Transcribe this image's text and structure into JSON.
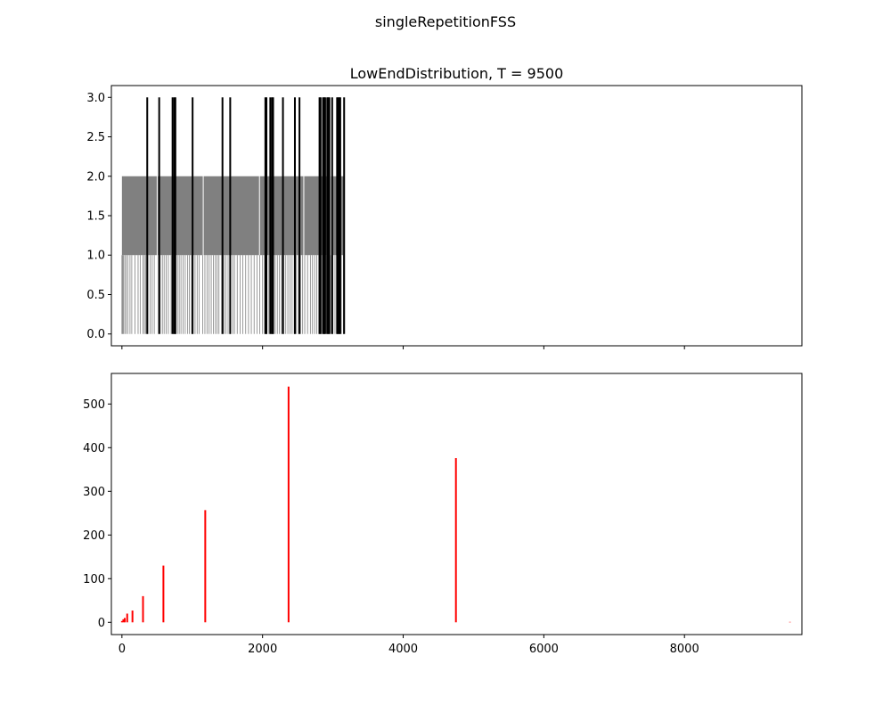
{
  "figure": {
    "suptitle": "singleRepetitionFSS"
  },
  "chart_data": [
    {
      "type": "bar",
      "title": "LowEndDistribution, T = 9500",
      "xlabel": "",
      "ylabel": "",
      "xlim": [
        -150,
        9670
      ],
      "ylim": [
        -0.15,
        3.15
      ],
      "x_ticks": [
        0,
        2000,
        4000,
        6000,
        8000
      ],
      "x_tick_labels_visible": false,
      "y_ticks": [
        0.0,
        0.5,
        1.0,
        1.5,
        2.0,
        2.5,
        3.0
      ],
      "y_tick_labels": [
        "0.0",
        "0.5",
        "1.0",
        "1.5",
        "2.0",
        "2.5",
        "3.0"
      ],
      "grid": false,
      "colors": {
        "level1": "#808080",
        "level2": "#808080",
        "level3": "#000000"
      },
      "level1_x": [
        0,
        10,
        22,
        40,
        60,
        85,
        115,
        140,
        185,
        230,
        260,
        300,
        320,
        340,
        370,
        400,
        430,
        460,
        520,
        545,
        575,
        600,
        630,
        660,
        700,
        730,
        760,
        790,
        815,
        840,
        870,
        900,
        935,
        960,
        990,
        1010,
        1040,
        1070,
        1100,
        1150,
        1180,
        1210,
        1240,
        1270,
        1300,
        1330,
        1355,
        1380,
        1420,
        1450,
        1480,
        1510,
        1540,
        1575,
        1600,
        1640,
        1680,
        1720,
        1760,
        1800,
        1840,
        1880,
        1920,
        1960,
        2000,
        2030,
        2060,
        2090,
        2120,
        2150,
        2180,
        2210,
        2240,
        2270,
        2300,
        2330,
        2360,
        2390,
        2420,
        2450,
        2480,
        2510,
        2540,
        2570,
        2600,
        2640,
        2680,
        2710,
        2740,
        2770,
        2800,
        2830,
        2850,
        2880,
        2910,
        2940,
        2970,
        3000,
        3030,
        3060,
        3090,
        3120,
        3150
      ],
      "level2_start": 0,
      "level2_end": 3170,
      "level2_gaps": [
        495,
        1150,
        1950,
        2450,
        2580,
        2960
      ],
      "level3_x": [
        360,
        530,
        720,
        745,
        760,
        1005,
        1430,
        1540,
        2040,
        2055,
        2110,
        2135,
        2150,
        2290,
        2460,
        2525,
        2810,
        2825,
        2860,
        2875,
        2890,
        2920,
        2935,
        2950,
        2990,
        3060,
        3075,
        3090,
        3105,
        3160
      ]
    },
    {
      "type": "bar",
      "title": "",
      "xlabel": "",
      "ylabel": "",
      "xlim": [
        -150,
        9670
      ],
      "ylim": [
        -28,
        570
      ],
      "x_ticks": [
        0,
        2000,
        4000,
        6000,
        8000
      ],
      "x_tick_labels": [
        "0",
        "2000",
        "4000",
        "6000",
        "8000"
      ],
      "y_ticks": [
        0,
        100,
        200,
        300,
        400,
        500
      ],
      "y_tick_labels": [
        "0",
        "100",
        "200",
        "300",
        "400",
        "500"
      ],
      "grid": false,
      "bar_color": "#ff0000",
      "x": [
        0,
        20,
        40,
        75,
        150,
        300,
        590,
        1185,
        2370,
        4750,
        9500
      ],
      "values": [
        3,
        7,
        10,
        20,
        27,
        60,
        130,
        257,
        540,
        376,
        1
      ]
    }
  ]
}
